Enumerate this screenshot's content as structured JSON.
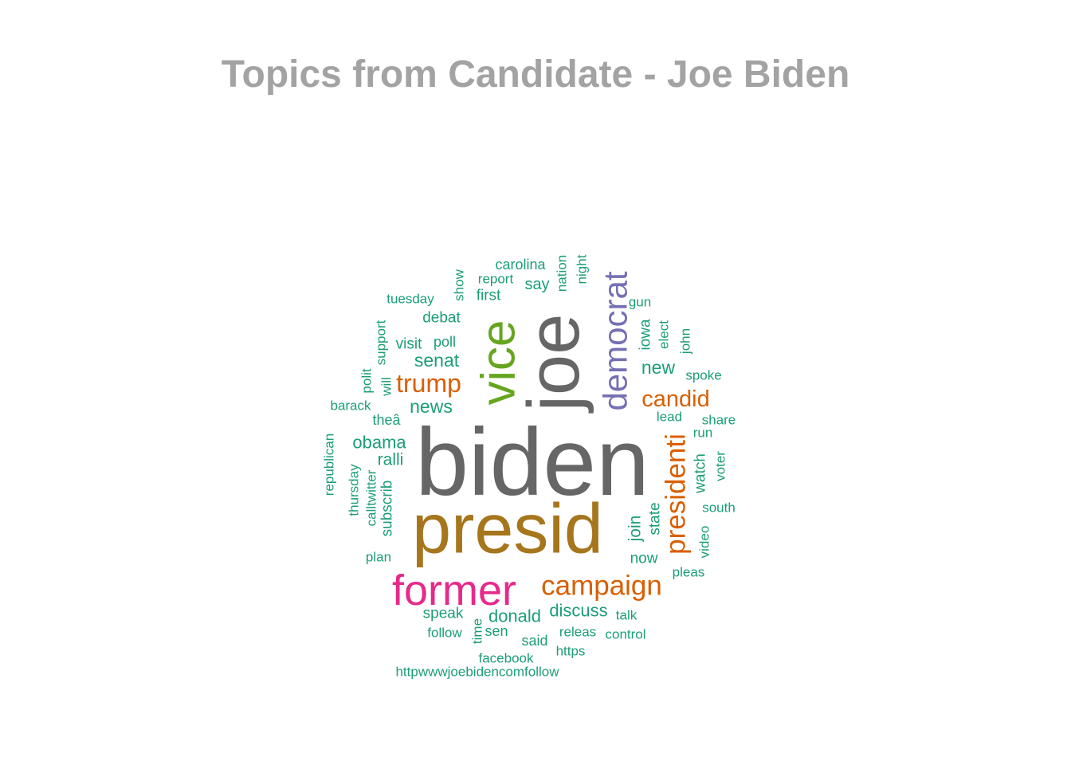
{
  "chart_data": {
    "type": "wordcloud",
    "title": "Topics from Candidate - Joe Biden",
    "palette": {
      "teal": "#1b9e77",
      "orange": "#d95f02",
      "purple": "#7570b3",
      "pink": "#e7298a",
      "green": "#66a61e",
      "gold": "#a6761d",
      "gray": "#666666"
    },
    "words": [
      {
        "text": "biden",
        "weight": 100,
        "color": "gray",
        "rotated": false
      },
      {
        "text": "joe",
        "weight": 78,
        "color": "gray",
        "rotated": true
      },
      {
        "text": "presid",
        "weight": 74,
        "color": "gold",
        "rotated": false
      },
      {
        "text": "vice",
        "weight": 52,
        "color": "green",
        "rotated": true
      },
      {
        "text": "former",
        "weight": 50,
        "color": "pink",
        "rotated": false
      },
      {
        "text": "democrat",
        "weight": 40,
        "color": "purple",
        "rotated": true
      },
      {
        "text": "presidenti",
        "weight": 34,
        "color": "orange",
        "rotated": true
      },
      {
        "text": "campaign",
        "weight": 34,
        "color": "orange",
        "rotated": false
      },
      {
        "text": "trump",
        "weight": 30,
        "color": "orange",
        "rotated": false
      },
      {
        "text": "candid",
        "weight": 28,
        "color": "orange",
        "rotated": false
      },
      {
        "text": "senat",
        "weight": 22,
        "color": "teal",
        "rotated": false
      },
      {
        "text": "news",
        "weight": 22,
        "color": "teal",
        "rotated": false
      },
      {
        "text": "new",
        "weight": 22,
        "color": "teal",
        "rotated": false
      },
      {
        "text": "donald",
        "weight": 21,
        "color": "teal",
        "rotated": false
      },
      {
        "text": "discuss",
        "weight": 21,
        "color": "teal",
        "rotated": false
      },
      {
        "text": "obama",
        "weight": 21,
        "color": "teal",
        "rotated": false
      },
      {
        "text": "join",
        "weight": 20,
        "color": "teal",
        "rotated": true
      },
      {
        "text": "ralli",
        "weight": 19,
        "color": "teal",
        "rotated": false
      },
      {
        "text": "say",
        "weight": 19,
        "color": "teal",
        "rotated": false
      },
      {
        "text": "visit",
        "weight": 18,
        "color": "teal",
        "rotated": false
      },
      {
        "text": "subscrib",
        "weight": 18,
        "color": "teal",
        "rotated": true
      },
      {
        "text": "now",
        "weight": 18,
        "color": "teal",
        "rotated": false
      },
      {
        "text": "state",
        "weight": 18,
        "color": "teal",
        "rotated": true
      },
      {
        "text": "watch",
        "weight": 18,
        "color": "teal",
        "rotated": true
      },
      {
        "text": "iowa",
        "weight": 18,
        "color": "teal",
        "rotated": true
      },
      {
        "text": "speak",
        "weight": 18,
        "color": "teal",
        "rotated": false
      },
      {
        "text": "first",
        "weight": 18,
        "color": "teal",
        "rotated": false
      },
      {
        "text": "debat",
        "weight": 18,
        "color": "teal",
        "rotated": false
      },
      {
        "text": "poll",
        "weight": 17,
        "color": "teal",
        "rotated": false
      },
      {
        "text": "carolina",
        "weight": 17,
        "color": "teal",
        "rotated": false
      },
      {
        "text": "theâ",
        "weight": 17,
        "color": "teal",
        "rotated": false
      },
      {
        "text": "said",
        "weight": 17,
        "color": "teal",
        "rotated": false
      },
      {
        "text": "sen",
        "weight": 17,
        "color": "teal",
        "rotated": false
      },
      {
        "text": "report",
        "weight": 16,
        "color": "teal",
        "rotated": false
      },
      {
        "text": "nation",
        "weight": 16,
        "color": "teal",
        "rotated": true
      },
      {
        "text": "night",
        "weight": 16,
        "color": "teal",
        "rotated": true
      },
      {
        "text": "show",
        "weight": 16,
        "color": "teal",
        "rotated": true
      },
      {
        "text": "tuesday",
        "weight": 16,
        "color": "teal",
        "rotated": false
      },
      {
        "text": "support",
        "weight": 16,
        "color": "teal",
        "rotated": true
      },
      {
        "text": "will",
        "weight": 16,
        "color": "teal",
        "rotated": true
      },
      {
        "text": "elect",
        "weight": 16,
        "color": "teal",
        "rotated": true
      },
      {
        "text": "gun",
        "weight": 16,
        "color": "teal",
        "rotated": false
      },
      {
        "text": "john",
        "weight": 16,
        "color": "teal",
        "rotated": true
      },
      {
        "text": "spoke",
        "weight": 16,
        "color": "teal",
        "rotated": false
      },
      {
        "text": "lead",
        "weight": 16,
        "color": "teal",
        "rotated": false
      },
      {
        "text": "share",
        "weight": 16,
        "color": "teal",
        "rotated": false
      },
      {
        "text": "run",
        "weight": 16,
        "color": "teal",
        "rotated": false
      },
      {
        "text": "voter",
        "weight": 16,
        "color": "teal",
        "rotated": true
      },
      {
        "text": "south",
        "weight": 16,
        "color": "teal",
        "rotated": false
      },
      {
        "text": "video",
        "weight": 16,
        "color": "teal",
        "rotated": true
      },
      {
        "text": "pleas",
        "weight": 16,
        "color": "teal",
        "rotated": false
      },
      {
        "text": "polit",
        "weight": 16,
        "color": "teal",
        "rotated": true
      },
      {
        "text": "barack",
        "weight": 16,
        "color": "teal",
        "rotated": false
      },
      {
        "text": "republican",
        "weight": 16,
        "color": "teal",
        "rotated": true
      },
      {
        "text": "thursday",
        "weight": 16,
        "color": "teal",
        "rotated": true
      },
      {
        "text": "calltwitter",
        "weight": 16,
        "color": "teal",
        "rotated": true
      },
      {
        "text": "plan",
        "weight": 16,
        "color": "teal",
        "rotated": false
      },
      {
        "text": "talk",
        "weight": 16,
        "color": "teal",
        "rotated": false
      },
      {
        "text": "control",
        "weight": 16,
        "color": "teal",
        "rotated": false
      },
      {
        "text": "releas",
        "weight": 16,
        "color": "teal",
        "rotated": false
      },
      {
        "text": "follow",
        "weight": 16,
        "color": "teal",
        "rotated": false
      },
      {
        "text": "time",
        "weight": 16,
        "color": "teal",
        "rotated": true
      },
      {
        "text": "facebook",
        "weight": 16,
        "color": "teal",
        "rotated": false
      },
      {
        "text": "https",
        "weight": 16,
        "color": "teal",
        "rotated": false
      },
      {
        "text": "httpwwwjoebidencomfollow",
        "weight": 16,
        "color": "teal",
        "rotated": false
      }
    ]
  }
}
